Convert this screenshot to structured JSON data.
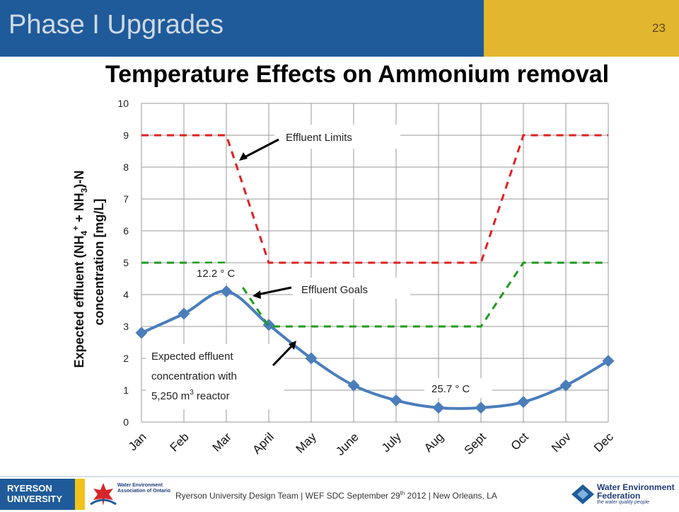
{
  "header": {
    "title": "Phase I Upgrades",
    "slide_number": "23"
  },
  "chart_data": {
    "type": "line",
    "title": "Temperature Effects on Ammonium removal",
    "ylabel_line1": "Expected effluent (NH",
    "ylabel_sub4": "4",
    "ylabel_sup_plus": "+",
    "ylabel_mid": " + NH",
    "ylabel_sub3": "3",
    "ylabel_end": ")-N",
    "ylabel_line2": "concentration [mg/L]",
    "ylim": [
      0,
      10
    ],
    "yticks": [
      0,
      1,
      2,
      3,
      4,
      5,
      6,
      7,
      8,
      9,
      10
    ],
    "categories": [
      "Jan",
      "Feb",
      "Mar",
      "April",
      "May",
      "June",
      "July",
      "Aug",
      "Sept",
      "Oct",
      "Nov",
      "Dec"
    ],
    "grid": true,
    "series": [
      {
        "key": "expected",
        "values": [
          2.8,
          3.4,
          4.1,
          3.05,
          2.0,
          1.15,
          0.68,
          0.45,
          0.45,
          0.63,
          1.15,
          1.92
        ],
        "color": "#4a7ebb",
        "style": "solid-markers"
      },
      {
        "key": "limits",
        "values": [
          9,
          9,
          9,
          5,
          5,
          5,
          5,
          5,
          5,
          9,
          9,
          9
        ],
        "color": "#e02020",
        "style": "dashed"
      },
      {
        "key": "goals",
        "values": [
          5,
          5,
          5,
          3,
          3,
          3,
          3,
          3,
          3,
          5,
          5,
          5
        ],
        "color": "#1e9a1e",
        "style": "dashed"
      }
    ],
    "annotations": {
      "effluent_limits": "Effluent Limits",
      "effluent_goals": "Effluent Goals",
      "temp_high": "12.2 ° C",
      "temp_low": "25.7 ° C",
      "expected_line1": "Expected effluent",
      "expected_line2": "concentration with",
      "expected_line3_pre": "5,250 m",
      "expected_line3_sup": "3",
      "expected_line3_post": " reactor"
    }
  },
  "footer": {
    "text_pre": "Ryerson University Design Team | WEF SDC  September 29",
    "text_sup": "th",
    "text_post": " 2012  | New Orleans, LA",
    "ryerson_line1": "RYERSON",
    "ryerson_line2": "UNIVERSITY",
    "weao_text": "Water Environment Association of Ontario",
    "wef_line1": "Water Environment",
    "wef_line2": "Federation",
    "wef_tag": "the water quality people"
  },
  "colors": {
    "header_blue": "#1f5b9a",
    "header_gold": "#e3b62f",
    "expected_line": "#4a7ebb",
    "limits_line": "#e02020",
    "goals_line": "#1e9a1e"
  }
}
